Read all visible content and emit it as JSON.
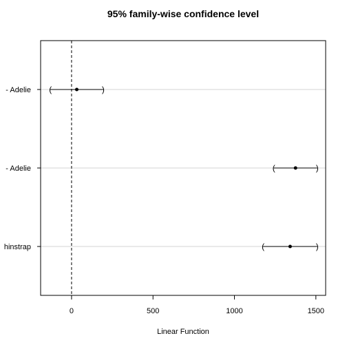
{
  "chart_data": {
    "type": "interval",
    "title": "95% family-wise confidence level",
    "xlabel": "Linear Function",
    "xlim": [
      -190,
      1560
    ],
    "x_ticks": [
      0,
      500,
      1000,
      1500
    ],
    "x_tick_labels": [
      "0",
      "500",
      "1000",
      "1500"
    ],
    "reference_line": 0,
    "grid": "horizontal at categories",
    "comparisons": [
      {
        "label": "- Adelie",
        "estimate": 32,
        "lower": -130,
        "upper": 194
      },
      {
        "label": "- Adelie",
        "estimate": 1375,
        "lower": 1242,
        "upper": 1508
      },
      {
        "label": "hinstrap",
        "estimate": 1342,
        "lower": 1176,
        "upper": 1508
      }
    ]
  }
}
